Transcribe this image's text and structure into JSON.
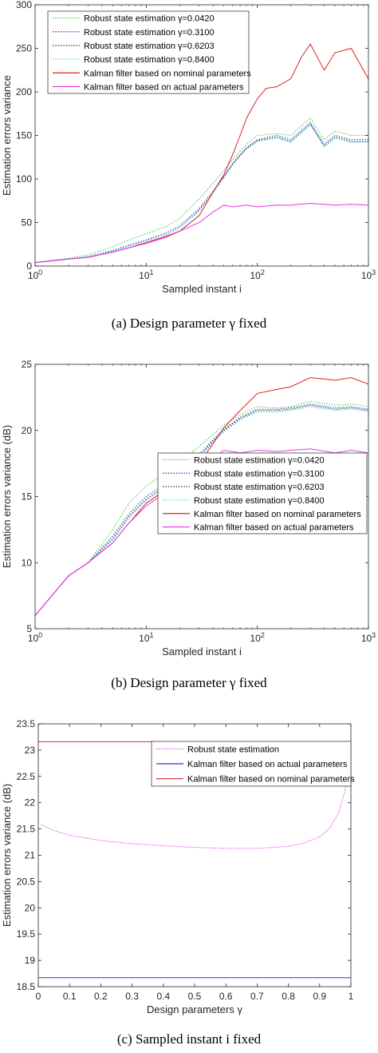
{
  "colors": {
    "green": "#33cc33",
    "blue": "#2a2acc",
    "black": "#222222",
    "cyan": "#33e0e0",
    "red": "#dd2222",
    "magenta": "#e633e6",
    "blue_solid": "#3333cc"
  },
  "chart_data": [
    {
      "type": "line",
      "caption": "(a) Design parameter γ fixed",
      "xlabel": "Sampled instant i",
      "ylabel": "Estimation errors variance",
      "xscale": "log",
      "xlim": [
        1,
        1000
      ],
      "ylim": [
        0,
        300
      ],
      "xticks": [
        {
          "v": 1,
          "base": "10",
          "exp": "0"
        },
        {
          "v": 10,
          "base": "10",
          "exp": "1"
        },
        {
          "v": 100,
          "base": "10",
          "exp": "2"
        },
        {
          "v": 1000,
          "base": "10",
          "exp": "3"
        }
      ],
      "yticks": [
        0,
        50,
        100,
        150,
        200,
        250,
        300
      ],
      "legend_position": "top-left",
      "series": [
        {
          "name": "Robust state estimation γ=0.0420",
          "color_key": "green",
          "dash": "dotted",
          "x": [
            1,
            2,
            3,
            5,
            7,
            10,
            15,
            20,
            30,
            40,
            50,
            60,
            70,
            80,
            100,
            150,
            200,
            300,
            400,
            500,
            700,
            1000
          ],
          "y": [
            4,
            9,
            13,
            22,
            30,
            37,
            45,
            55,
            77,
            95,
            110,
            122,
            132,
            140,
            150,
            152,
            150,
            170,
            145,
            155,
            150,
            150
          ]
        },
        {
          "name": "Robust state estimation γ=0.3100",
          "color_key": "blue",
          "dash": "dotted",
          "x": [
            1,
            2,
            3,
            5,
            7,
            10,
            15,
            20,
            30,
            40,
            50,
            60,
            70,
            80,
            100,
            150,
            200,
            300,
            400,
            500,
            700,
            1000
          ],
          "y": [
            4,
            8,
            11,
            18,
            24,
            30,
            38,
            46,
            66,
            86,
            103,
            118,
            128,
            136,
            145,
            150,
            145,
            165,
            140,
            150,
            145,
            145
          ]
        },
        {
          "name": "Robust state estimation γ=0.6203",
          "color_key": "black",
          "dash": "dotted",
          "x": [
            1,
            2,
            3,
            5,
            7,
            10,
            15,
            20,
            30,
            40,
            50,
            60,
            70,
            80,
            100,
            150,
            200,
            300,
            400,
            500,
            700,
            1000
          ],
          "y": [
            4,
            8,
            11,
            17,
            23,
            29,
            36,
            44,
            64,
            84,
            102,
            117,
            127,
            135,
            144,
            148,
            143,
            163,
            138,
            148,
            143,
            143
          ]
        },
        {
          "name": "Robust state estimation γ=0.8400",
          "color_key": "cyan",
          "dash": "dotted",
          "x": [
            1,
            2,
            3,
            5,
            7,
            10,
            15,
            20,
            30,
            40,
            50,
            60,
            70,
            80,
            100,
            150,
            200,
            300,
            400,
            500,
            700,
            1000
          ],
          "y": [
            4,
            8,
            11,
            17,
            23,
            29,
            36,
            44,
            63,
            84,
            101,
            116,
            126,
            134,
            143,
            147,
            142,
            162,
            137,
            147,
            142,
            142
          ]
        },
        {
          "name": "Kalman filter based on nominal parameters",
          "color_key": "red",
          "dash": "solid",
          "x": [
            1,
            2,
            3,
            5,
            7,
            10,
            15,
            20,
            30,
            40,
            50,
            60,
            70,
            80,
            100,
            120,
            150,
            200,
            250,
            300,
            400,
            500,
            700,
            1000
          ],
          "y": [
            4,
            8,
            10,
            16,
            21,
            27,
            34,
            40,
            58,
            85,
            105,
            128,
            150,
            170,
            192,
            204,
            206,
            215,
            240,
            255,
            225,
            245,
            250,
            215
          ]
        },
        {
          "name": "Kalman filter based on actual parameters",
          "color_key": "magenta",
          "dash": "solid",
          "x": [
            1,
            2,
            3,
            5,
            7,
            10,
            15,
            20,
            30,
            40,
            50,
            60,
            80,
            100,
            150,
            200,
            300,
            500,
            700,
            1000
          ],
          "y": [
            4,
            8,
            10,
            16,
            21,
            26,
            33,
            40,
            50,
            62,
            70,
            68,
            70,
            68,
            70,
            70,
            72,
            70,
            71,
            70
          ]
        }
      ]
    },
    {
      "type": "line",
      "caption": "(b) Design parameter γ fixed",
      "xlabel": "Sampled instant i",
      "ylabel": "Estimation errors variance (dB)",
      "xscale": "log",
      "xlim": [
        1,
        1000
      ],
      "ylim": [
        5,
        25
      ],
      "xticks": [
        {
          "v": 1,
          "base": "10",
          "exp": "0"
        },
        {
          "v": 10,
          "base": "10",
          "exp": "1"
        },
        {
          "v": 100,
          "base": "10",
          "exp": "2"
        },
        {
          "v": 1000,
          "base": "10",
          "exp": "3"
        }
      ],
      "yticks": [
        5,
        10,
        15,
        20,
        25
      ],
      "legend_position": "bottom-right",
      "series": [
        {
          "name": "Robust state estimation γ=0.0420",
          "color_key": "green",
          "dash": "dotted",
          "x": [
            1,
            2,
            3,
            5,
            7,
            10,
            15,
            20,
            30,
            40,
            50,
            70,
            100,
            150,
            200,
            300,
            500,
            700,
            1000
          ],
          "y": [
            6,
            9,
            10,
            12.5,
            14.5,
            15.8,
            16.8,
            17.6,
            18.8,
            19.7,
            20.4,
            21.2,
            21.8,
            21.7,
            21.8,
            22.2,
            21.9,
            22,
            21.8
          ]
        },
        {
          "name": "Robust state estimation γ=0.3100",
          "color_key": "blue",
          "dash": "dotted",
          "x": [
            1,
            2,
            3,
            5,
            7,
            10,
            15,
            20,
            30,
            40,
            50,
            70,
            100,
            150,
            200,
            300,
            500,
            700,
            1000
          ],
          "y": [
            6,
            9,
            10,
            12,
            13.7,
            15,
            16,
            16.8,
            18.2,
            19.3,
            20.1,
            21,
            21.6,
            21.6,
            21.7,
            22,
            21.7,
            21.8,
            21.6
          ]
        },
        {
          "name": "Robust state estimation γ=0.6203",
          "color_key": "black",
          "dash": "dotted",
          "x": [
            1,
            2,
            3,
            5,
            7,
            10,
            15,
            20,
            30,
            40,
            50,
            70,
            100,
            150,
            200,
            300,
            500,
            700,
            1000
          ],
          "y": [
            6,
            9,
            10,
            11.8,
            13.5,
            14.8,
            15.8,
            16.6,
            18,
            19.2,
            20,
            20.9,
            21.5,
            21.5,
            21.6,
            21.9,
            21.6,
            21.7,
            21.5
          ]
        },
        {
          "name": "Robust state estimation γ=0.8400",
          "color_key": "cyan",
          "dash": "dotted",
          "x": [
            1,
            2,
            3,
            5,
            7,
            10,
            15,
            20,
            30,
            40,
            50,
            70,
            100,
            150,
            200,
            300,
            500,
            700,
            1000
          ],
          "y": [
            6,
            9,
            10,
            11.7,
            13.4,
            14.7,
            15.7,
            16.5,
            17.9,
            19.1,
            19.9,
            20.8,
            21.4,
            21.4,
            21.5,
            21.8,
            21.5,
            21.6,
            21.4
          ]
        },
        {
          "name": "Kalman filter based on nominal parameters",
          "color_key": "red",
          "dash": "solid",
          "x": [
            1,
            2,
            3,
            5,
            7,
            10,
            15,
            20,
            30,
            40,
            50,
            70,
            100,
            150,
            200,
            300,
            500,
            700,
            1000
          ],
          "y": [
            6,
            9,
            10,
            11.5,
            13,
            14.5,
            15.5,
            16.3,
            17.5,
            19,
            20.2,
            21.5,
            22.8,
            23.1,
            23.3,
            24,
            23.8,
            24,
            23.5
          ]
        },
        {
          "name": "Kalman filter based on actual parameters",
          "color_key": "magenta",
          "dash": "solid",
          "x": [
            1,
            2,
            3,
            5,
            7,
            10,
            15,
            20,
            30,
            40,
            50,
            70,
            100,
            150,
            200,
            300,
            500,
            700,
            1000
          ],
          "y": [
            6,
            9,
            10,
            11.5,
            13,
            14.3,
            15.3,
            16,
            17,
            17.9,
            18.5,
            18.3,
            18.5,
            18.4,
            18.5,
            18.6,
            18.3,
            18.5,
            18.3
          ]
        }
      ]
    },
    {
      "type": "line",
      "caption": "(c) Sampled instant i fixed",
      "xlabel": "Design parameters γ",
      "ylabel": "Estimation errors variance (dB)",
      "xscale": "linear",
      "xlim": [
        0,
        1
      ],
      "ylim": [
        18.5,
        23.5
      ],
      "xticks": [
        0,
        0.1,
        0.2,
        0.3,
        0.4,
        0.5,
        0.6,
        0.7,
        0.8,
        0.9,
        1
      ],
      "yticks": [
        18.5,
        19,
        19.5,
        20,
        20.5,
        21,
        21.5,
        22,
        22.5,
        23,
        23.5
      ],
      "legend_position": "top-right",
      "series": [
        {
          "name": "Robust state estimation",
          "color_key": "magenta",
          "dash": "dotted",
          "x": [
            0.01,
            0.05,
            0.1,
            0.2,
            0.3,
            0.4,
            0.5,
            0.6,
            0.7,
            0.8,
            0.85,
            0.9,
            0.93,
            0.96,
            0.98,
            1.0
          ],
          "y": [
            21.58,
            21.47,
            21.38,
            21.28,
            21.22,
            21.18,
            21.15,
            21.13,
            21.13,
            21.17,
            21.23,
            21.35,
            21.5,
            21.8,
            22.2,
            22.85
          ]
        },
        {
          "name": "Kalman filter based on actual parameters",
          "color_key": "blue_solid",
          "dash": "solid",
          "x": [
            0,
            1
          ],
          "y": [
            18.67,
            18.67
          ]
        },
        {
          "name": "Kalman filter based on nominal parameters",
          "color_key": "red",
          "dash": "solid",
          "x": [
            0,
            1
          ],
          "y": [
            23.16,
            23.16
          ]
        }
      ]
    }
  ]
}
